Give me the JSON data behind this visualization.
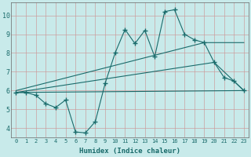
{
  "title": "",
  "xlabel": "Humidex (Indice chaleur)",
  "background_color": "#c8eaea",
  "grid_color": "#cc9999",
  "line_color": "#1a6b6b",
  "xlim": [
    -0.5,
    23.5
  ],
  "ylim": [
    3.5,
    10.7
  ],
  "yticks": [
    4,
    5,
    6,
    7,
    8,
    9,
    10
  ],
  "xticks": [
    0,
    1,
    2,
    3,
    4,
    5,
    6,
    7,
    8,
    9,
    10,
    11,
    12,
    13,
    14,
    15,
    16,
    17,
    18,
    19,
    20,
    21,
    22,
    23
  ],
  "line1_x": [
    0,
    1,
    2,
    3,
    4,
    5,
    6,
    7,
    8,
    9,
    10,
    11,
    12,
    13,
    14,
    15,
    16,
    17,
    18,
    19,
    20,
    21,
    22,
    23
  ],
  "line1_y": [
    5.9,
    5.9,
    5.75,
    5.3,
    5.1,
    5.5,
    3.8,
    3.75,
    4.35,
    6.4,
    8.0,
    9.25,
    8.5,
    9.2,
    7.8,
    10.2,
    10.3,
    9.0,
    8.7,
    8.55,
    7.5,
    6.7,
    6.5,
    6.0
  ],
  "line2_x": [
    0,
    23
  ],
  "line2_y": [
    5.9,
    6.0
  ],
  "line3_x": [
    0,
    20,
    23
  ],
  "line3_y": [
    5.9,
    7.5,
    6.0
  ],
  "line4_x": [
    0,
    19,
    23
  ],
  "line4_y": [
    6.0,
    8.55,
    8.55
  ]
}
